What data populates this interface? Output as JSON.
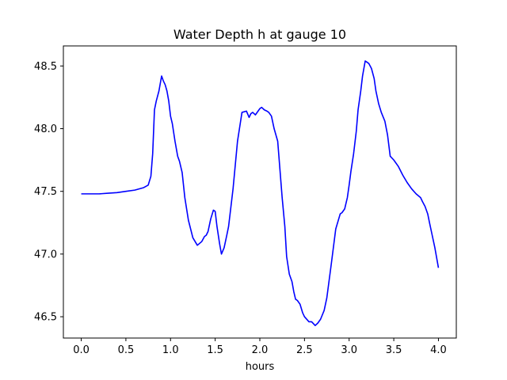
{
  "chart_data": {
    "type": "line",
    "title": "Water Depth h at gauge 10",
    "xlabel": "hours",
    "ylabel": "",
    "xlim": [
      -0.2,
      4.2
    ],
    "ylim": [
      46.33,
      48.66
    ],
    "xticks": [
      0.0,
      0.5,
      1.0,
      1.5,
      2.0,
      2.5,
      3.0,
      3.5,
      4.0
    ],
    "xtick_labels": [
      "0.0",
      "0.5",
      "1.0",
      "1.5",
      "2.0",
      "2.5",
      "3.0",
      "3.5",
      "4.0"
    ],
    "yticks": [
      46.5,
      47.0,
      47.5,
      48.0,
      48.5
    ],
    "ytick_labels": [
      "46.5",
      "47.0",
      "47.5",
      "48.0",
      "48.5"
    ],
    "grid": false,
    "series": [
      {
        "color": "#0000ff",
        "x": [
          0.0,
          0.1,
          0.2,
          0.3,
          0.4,
          0.5,
          0.6,
          0.7,
          0.75,
          0.78,
          0.8,
          0.82,
          0.84,
          0.87,
          0.9,
          0.92,
          0.94,
          0.96,
          0.98,
          1.0,
          1.02,
          1.05,
          1.08,
          1.1,
          1.13,
          1.16,
          1.2,
          1.25,
          1.3,
          1.35,
          1.38,
          1.4,
          1.42,
          1.45,
          1.48,
          1.5,
          1.52,
          1.55,
          1.57,
          1.6,
          1.63,
          1.65,
          1.7,
          1.75,
          1.8,
          1.85,
          1.88,
          1.9,
          1.92,
          1.95,
          1.98,
          2.0,
          2.02,
          2.05,
          2.08,
          2.1,
          2.13,
          2.16,
          2.2,
          2.22,
          2.25,
          2.28,
          2.3,
          2.33,
          2.36,
          2.38,
          2.4,
          2.42,
          2.45,
          2.48,
          2.5,
          2.55,
          2.58,
          2.62,
          2.65,
          2.68,
          2.72,
          2.75,
          2.8,
          2.85,
          2.9,
          2.92,
          2.95,
          2.98,
          3.0,
          3.02,
          3.05,
          3.08,
          3.1,
          3.13,
          3.15,
          3.18,
          3.2,
          3.22,
          3.25,
          3.28,
          3.3,
          3.33,
          3.36,
          3.4,
          3.43,
          3.46,
          3.5,
          3.55,
          3.6,
          3.65,
          3.7,
          3.75,
          3.8,
          3.82,
          3.85,
          3.88,
          3.9,
          3.93,
          3.96,
          4.0
        ],
        "y": [
          47.48,
          47.48,
          47.48,
          47.485,
          47.49,
          47.5,
          47.51,
          47.53,
          47.55,
          47.62,
          47.8,
          48.15,
          48.22,
          48.3,
          48.42,
          48.38,
          48.35,
          48.3,
          48.22,
          48.1,
          48.04,
          47.9,
          47.78,
          47.74,
          47.65,
          47.45,
          47.27,
          47.13,
          47.07,
          47.1,
          47.14,
          47.15,
          47.18,
          47.28,
          47.35,
          47.34,
          47.22,
          47.08,
          47.0,
          47.05,
          47.15,
          47.22,
          47.52,
          47.9,
          48.13,
          48.14,
          48.09,
          48.12,
          48.13,
          48.11,
          48.14,
          48.16,
          48.17,
          48.15,
          48.14,
          48.13,
          48.1,
          48.0,
          47.9,
          47.72,
          47.45,
          47.22,
          46.98,
          46.84,
          46.78,
          46.7,
          46.64,
          46.63,
          46.6,
          46.53,
          46.5,
          46.46,
          46.46,
          46.43,
          46.45,
          46.48,
          46.55,
          46.65,
          46.92,
          47.2,
          47.32,
          47.33,
          47.36,
          47.45,
          47.55,
          47.66,
          47.8,
          47.98,
          48.15,
          48.3,
          48.42,
          48.54,
          48.53,
          48.52,
          48.48,
          48.4,
          48.3,
          48.2,
          48.13,
          48.06,
          47.95,
          47.78,
          47.75,
          47.7,
          47.63,
          47.57,
          47.52,
          47.48,
          47.45,
          47.42,
          47.38,
          47.32,
          47.25,
          47.15,
          47.05,
          46.89
        ]
      }
    ]
  }
}
